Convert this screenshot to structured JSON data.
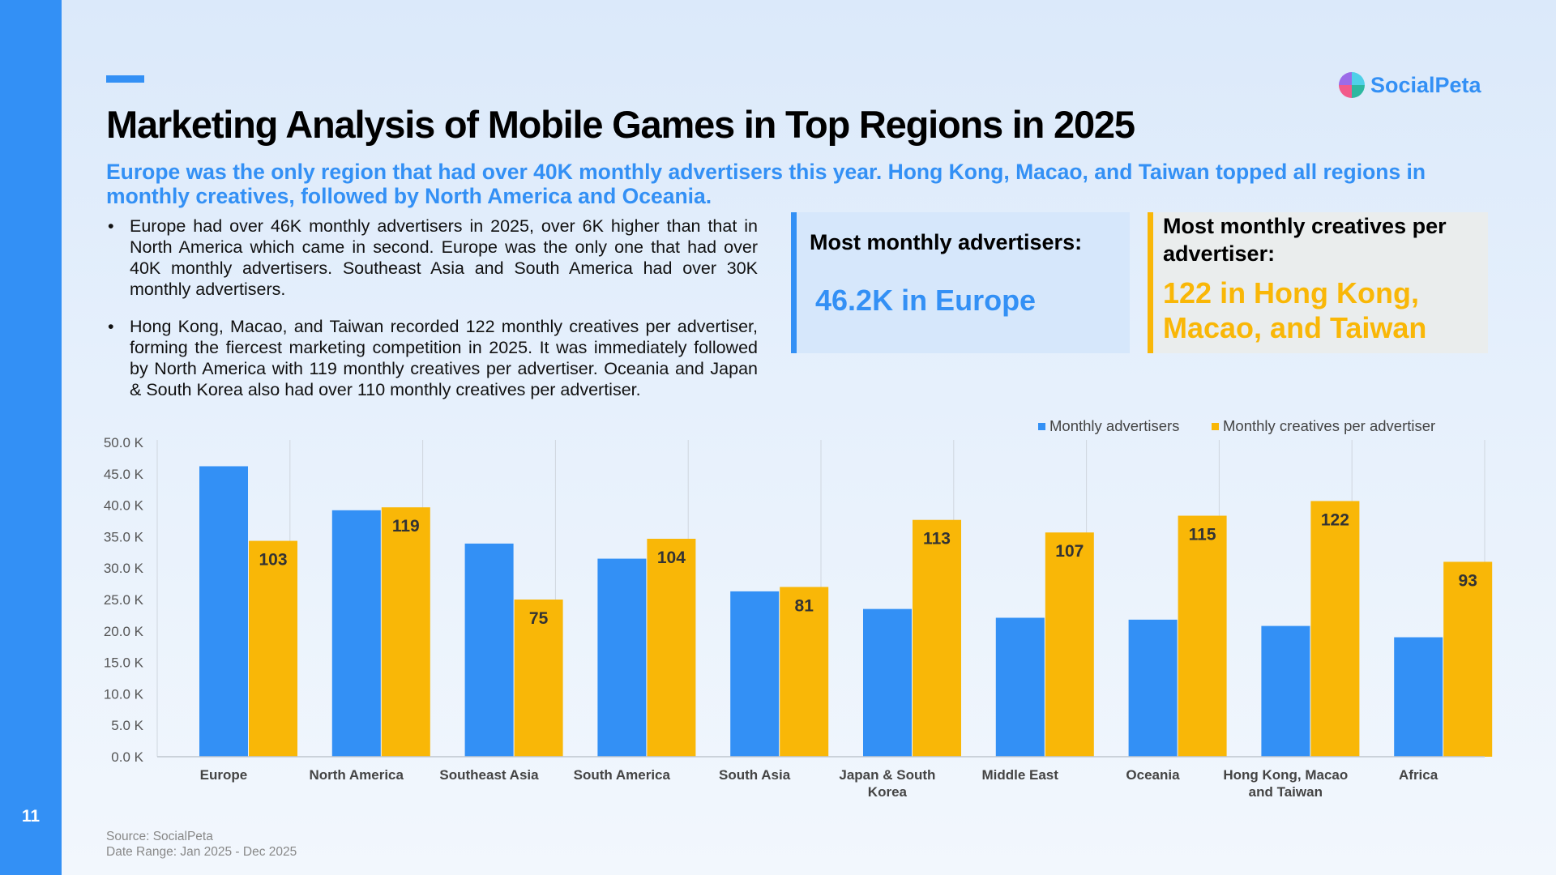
{
  "page": {
    "number": "11"
  },
  "brand": {
    "name": "SocialPeta",
    "primary": "#3390f5",
    "accent": "#f9b707"
  },
  "title": "Marketing Analysis of Mobile Games in Top Regions in 2025",
  "subtitle": "Europe was the only region that had over 40K monthly advertisers this year. Hong Kong, Macao, and Taiwan topped all regions in monthly creatives, followed by North America and Oceania.",
  "bullets": [
    "Europe had over 46K monthly advertisers in 2025, over 6K higher than that in North America which came in second. Europe was the only one that had over 40K monthly advertisers. Southeast Asia and South America had over 30K monthly advertisers.",
    "Hong Kong, Macao, and Taiwan recorded 122 monthly creatives per advertiser, forming the fiercest marketing competition in 2025. It was immediately followed by North America with 119 monthly creatives per advertiser. Oceania and Japan & South Korea also had over 110 monthly creatives per advertiser."
  ],
  "cards": {
    "advertisers": {
      "label": "Most monthly advertisers:",
      "value": "46.2K in Europe"
    },
    "creatives": {
      "label": "Most monthly creatives per advertiser:",
      "value": "122 in Hong Kong, Macao, and Taiwan"
    }
  },
  "chart_data": {
    "type": "bar",
    "categories": [
      "Europe",
      "North America",
      "Southeast Asia",
      "South America",
      "South Asia",
      "Japan & South Korea",
      "Middle East",
      "Oceania",
      "Hong Kong, Macao and Taiwan",
      "Africa"
    ],
    "category_lines": [
      [
        "Europe"
      ],
      [
        "North America"
      ],
      [
        "Southeast Asia"
      ],
      [
        "South America"
      ],
      [
        "South Asia"
      ],
      [
        "Japan & South",
        "Korea"
      ],
      [
        "Middle East"
      ],
      [
        "Oceania"
      ],
      [
        "Hong Kong, Macao",
        "and Taiwan"
      ],
      [
        "Africa"
      ]
    ],
    "series": [
      {
        "name": "Monthly advertisers",
        "color": "#3390f5",
        "axis": "left",
        "values": [
          46.2,
          39.2,
          33.9,
          31.5,
          26.3,
          23.5,
          22.1,
          21.8,
          20.8,
          19.0
        ]
      },
      {
        "name": "Monthly creatives per advertiser",
        "color": "#f9b707",
        "axis": "right",
        "values": [
          103,
          119,
          75,
          104,
          81,
          113,
          107,
          115,
          122,
          93
        ],
        "labels": [
          "103",
          "119",
          "75",
          "104",
          "81",
          "113",
          "107",
          "115",
          "122",
          "93"
        ]
      }
    ],
    "y_ticks": [
      "0.0 K",
      "5.0 K",
      "10.0 K",
      "15.0 K",
      "20.0 K",
      "25.0 K",
      "30.0 K",
      "35.0 K",
      "40.0 K",
      "45.0 K",
      "50.0 K"
    ],
    "ylim": [
      0,
      50
    ],
    "legend_position": "top-right",
    "grid": false
  },
  "source": {
    "line1": "Source: SocialPeta",
    "line2": "Date Range: Jan 2025 - Dec 2025"
  }
}
